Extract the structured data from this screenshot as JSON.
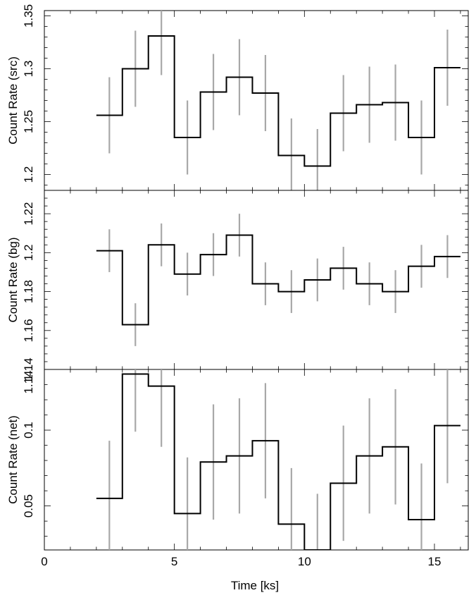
{
  "chart_data": {
    "type": "line",
    "style": "step-histogram with error bars",
    "xlabel": "Time [ks]",
    "xlim": [
      0,
      16.3
    ],
    "xticks": [
      0,
      5,
      10,
      15
    ],
    "bin_edges": [
      2,
      3,
      4,
      5,
      6,
      7,
      8,
      9,
      10,
      11,
      12,
      13,
      14,
      15,
      16
    ],
    "bin_centers": [
      2.5,
      3.5,
      4.5,
      5.5,
      6.5,
      7.5,
      8.5,
      9.5,
      10.5,
      11.5,
      12.5,
      13.5,
      14.5,
      15.5
    ],
    "panels": [
      {
        "id": "src",
        "ylabel": "Count Rate (src)",
        "ylim": [
          1.185,
          1.355
        ],
        "yticks": [
          1.2,
          1.25,
          1.3,
          1.35
        ],
        "ytick_labels": [
          "1.2",
          "1.25",
          "1.3",
          "1.35"
        ],
        "values": [
          1.256,
          1.3,
          1.331,
          1.235,
          1.278,
          1.292,
          1.277,
          1.218,
          1.208,
          1.258,
          1.266,
          1.268,
          1.235,
          1.301
        ],
        "errors": [
          0.036,
          0.036,
          0.037,
          0.035,
          0.036,
          0.036,
          0.036,
          0.035,
          0.035,
          0.036,
          0.036,
          0.036,
          0.035,
          0.036
        ]
      },
      {
        "id": "bg",
        "ylabel": "Count Rate (bg)",
        "ylim": [
          1.14,
          1.232
        ],
        "yticks": [
          1.14,
          1.16,
          1.18,
          1.2,
          1.22
        ],
        "ytick_labels": [
          "1.14",
          "1.16",
          "1.18",
          "1.2",
          "1.22"
        ],
        "values": [
          1.201,
          1.163,
          1.204,
          1.189,
          1.199,
          1.209,
          1.184,
          1.18,
          1.186,
          1.192,
          1.184,
          1.18,
          1.193,
          1.198
        ],
        "errors": [
          0.011,
          0.011,
          0.011,
          0.011,
          0.011,
          0.011,
          0.011,
          0.011,
          0.011,
          0.011,
          0.011,
          0.011,
          0.011,
          0.011
        ]
      },
      {
        "id": "net",
        "ylabel": "Count Rate (net)",
        "ylim": [
          0.021,
          0.14
        ],
        "yticks": [
          0.05,
          0.1
        ],
        "ytick_labels": [
          "0.05",
          "0.1"
        ],
        "extra_tick_labels": [
          "1.14"
        ],
        "values": [
          0.055,
          0.137,
          0.129,
          0.045,
          0.079,
          0.083,
          0.093,
          0.038,
          0.021,
          0.065,
          0.083,
          0.089,
          0.041,
          0.103
        ],
        "errors": [
          0.038,
          0.038,
          0.04,
          0.037,
          0.038,
          0.038,
          0.038,
          0.037,
          0.037,
          0.038,
          0.038,
          0.038,
          0.037,
          0.038
        ]
      }
    ],
    "colors": {
      "histogram": "#000000",
      "error_bars": "#a8a8a8"
    }
  }
}
